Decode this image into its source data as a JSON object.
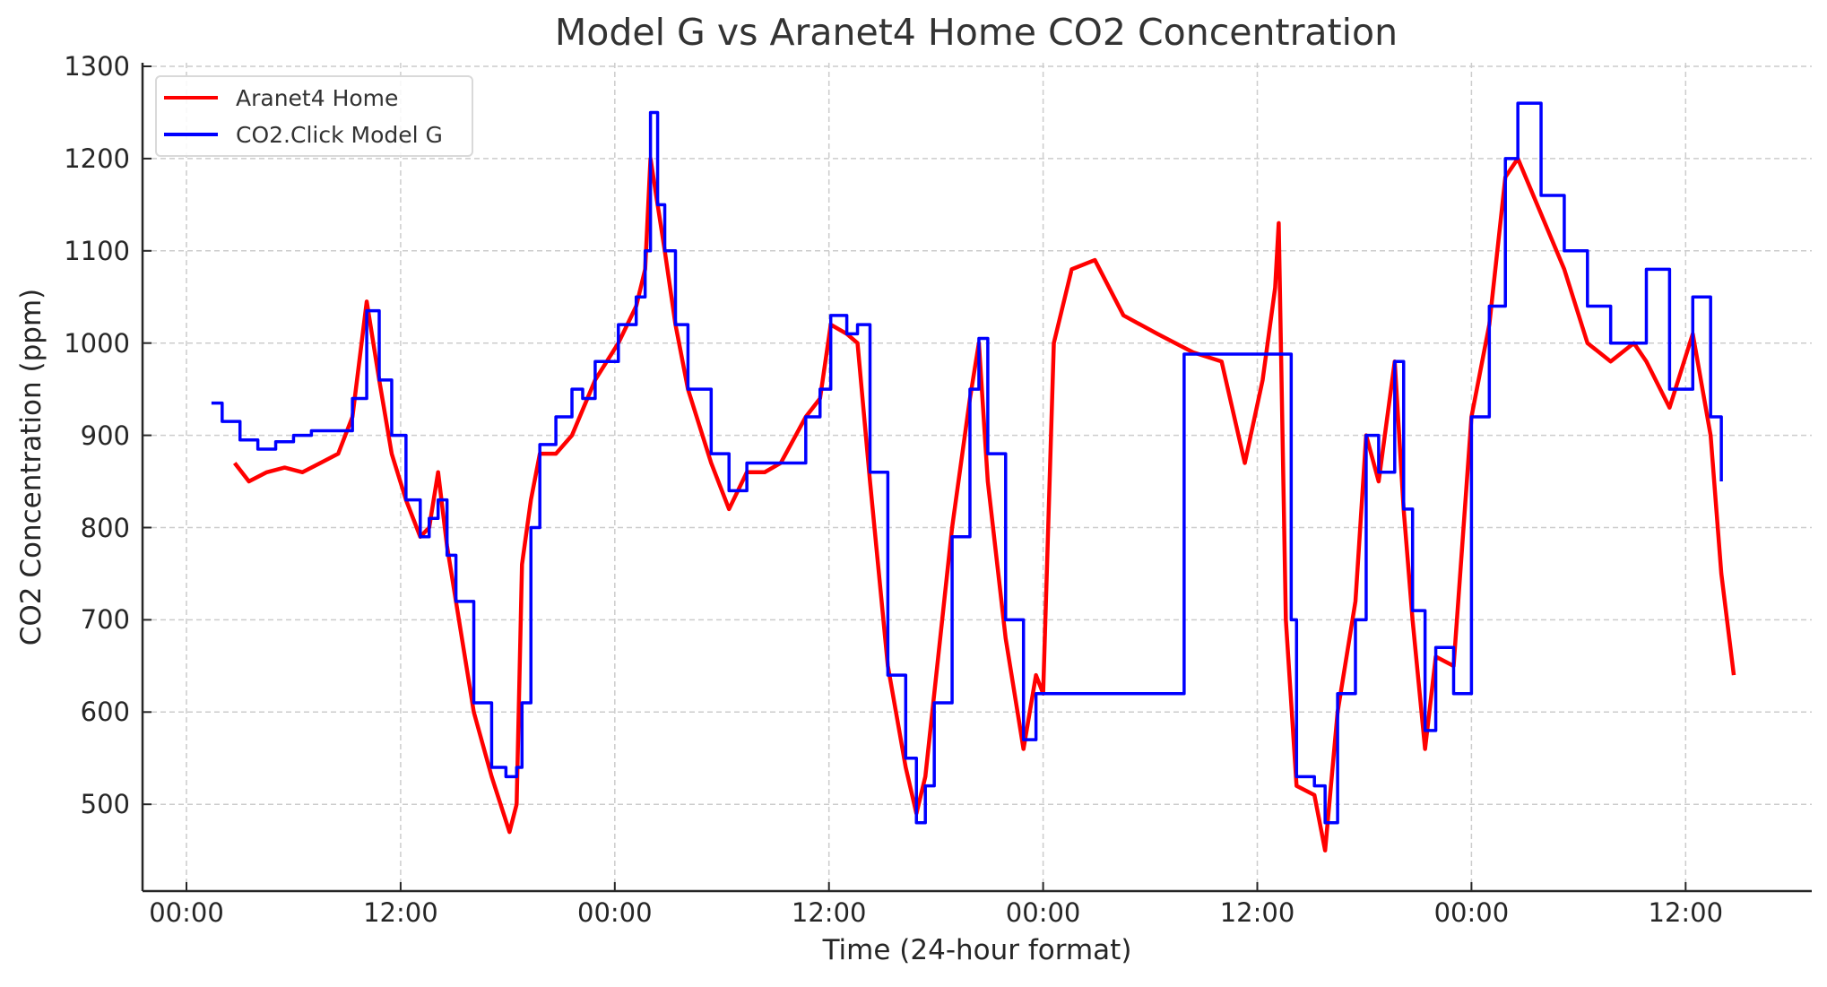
{
  "chart_data": {
    "type": "line",
    "title": "Model G vs Aranet4 Home CO2 Concentration",
    "xlabel": "Time (24-hour format)",
    "ylabel": "CO2 Concentration (ppm)",
    "x_unit": "hours since first 00:00 tick",
    "x_ticks": [
      0,
      12,
      24,
      36,
      48,
      60,
      72,
      84
    ],
    "x_tick_labels": [
      "00:00",
      "12:00",
      "00:00",
      "12:00",
      "00:00",
      "12:00",
      "00:00",
      "12:00"
    ],
    "xlim": [
      -2.5,
      91.1
    ],
    "y_ticks": [
      500,
      600,
      700,
      800,
      900,
      1000,
      1100,
      1200,
      1300
    ],
    "y_tick_labels": [
      "500",
      "600",
      "700",
      "800",
      "900",
      "1000",
      "1100",
      "1200",
      "1300"
    ],
    "ylim": [
      406,
      1300
    ],
    "grid": true,
    "legend_position": "upper left",
    "series": [
      {
        "name": "Aranet4 Home",
        "color": "#ff0000",
        "x": [
          2.7,
          3.5,
          4.5,
          5.5,
          6.5,
          7.5,
          8.5,
          9.3,
          10.1,
          10.8,
          11.5,
          12.3,
          13.1,
          13.6,
          14.1,
          14.6,
          15.1,
          16.1,
          17.1,
          18.1,
          18.5,
          18.8,
          19.3,
          19.8,
          20.7,
          21.6,
          22.9,
          24.2,
          25.2,
          25.7,
          26.0,
          26.4,
          26.8,
          27.4,
          28.1,
          29.4,
          30.4,
          31.4,
          32.4,
          33.3,
          34.7,
          35.5,
          36.1,
          37.0,
          37.6,
          38.3,
          39.3,
          40.3,
          40.9,
          41.4,
          41.9,
          42.9,
          43.9,
          44.4,
          44.9,
          45.9,
          46.9,
          47.6,
          48.0,
          48.6,
          49.6,
          50.9,
          52.5,
          54.4,
          56.4,
          58.0,
          59.3,
          60.3,
          61.0,
          61.2,
          61.6,
          62.2,
          63.2,
          63.8,
          64.5,
          65.5,
          66.1,
          66.8,
          67.7,
          68.2,
          68.7,
          69.4,
          70.0,
          71.0,
          72.0,
          73.0,
          73.9,
          74.6,
          75.9,
          77.2,
          78.5,
          79.8,
          81.1,
          81.8,
          83.1,
          84.4,
          85.4,
          86.0,
          86.7
        ],
        "values": [
          870,
          850,
          860,
          865,
          860,
          870,
          880,
          920,
          1045,
          960,
          880,
          830,
          790,
          800,
          860,
          780,
          720,
          600,
          530,
          470,
          500,
          760,
          830,
          880,
          880,
          900,
          960,
          1000,
          1040,
          1080,
          1200,
          1150,
          1100,
          1020,
          950,
          870,
          820,
          860,
          860,
          870,
          920,
          940,
          1020,
          1010,
          1000,
          850,
          650,
          540,
          490,
          530,
          620,
          800,
          940,
          1000,
          850,
          680,
          560,
          640,
          620,
          1000,
          1080,
          1090,
          1030,
          1010,
          990,
          980,
          870,
          960,
          1060,
          1130,
          700,
          520,
          510,
          450,
          600,
          720,
          900,
          850,
          980,
          820,
          700,
          560,
          660,
          650,
          920,
          1020,
          1180,
          1200,
          1140,
          1080,
          1000,
          980,
          1000,
          980,
          930,
          1010,
          900,
          750,
          640
        ]
      },
      {
        "name": "CO2.Click Model G",
        "color": "#0000ff",
        "x": [
          1.4,
          2.0,
          3.0,
          4.0,
          5.0,
          6.0,
          7.0,
          8.0,
          9.3,
          10.1,
          10.8,
          11.5,
          12.3,
          13.1,
          13.6,
          14.1,
          14.6,
          15.1,
          16.1,
          17.1,
          17.9,
          18.5,
          18.8,
          19.3,
          19.8,
          20.7,
          21.6,
          22.2,
          22.9,
          24.2,
          25.2,
          25.7,
          26.0,
          26.4,
          26.8,
          27.4,
          28.1,
          29.4,
          30.4,
          31.4,
          32.4,
          33.3,
          34.7,
          35.5,
          36.1,
          37.0,
          37.6,
          38.3,
          39.3,
          40.3,
          40.9,
          41.4,
          41.9,
          42.9,
          43.9,
          44.4,
          44.9,
          45.9,
          46.9,
          47.6,
          55.9,
          55.9,
          61.6,
          61.9,
          62.2,
          63.2,
          63.8,
          64.5,
          65.5,
          66.1,
          66.8,
          67.7,
          68.2,
          68.7,
          69.4,
          70.0,
          71.0,
          72.0,
          73.0,
          73.9,
          74.6,
          75.9,
          77.2,
          78.5,
          79.8,
          81.1,
          81.8,
          83.1,
          84.4,
          85.4,
          86.0
        ],
        "values": [
          935,
          915,
          895,
          885,
          893,
          900,
          905,
          905,
          940,
          1035,
          960,
          900,
          830,
          790,
          810,
          830,
          770,
          720,
          610,
          540,
          530,
          540,
          610,
          800,
          890,
          920,
          950,
          940,
          980,
          1020,
          1050,
          1100,
          1250,
          1150,
          1100,
          1020,
          950,
          880,
          840,
          870,
          870,
          870,
          920,
          950,
          1030,
          1010,
          1020,
          860,
          640,
          550,
          480,
          520,
          610,
          790,
          950,
          1005,
          880,
          700,
          570,
          620,
          620,
          988,
          988,
          700,
          530,
          520,
          480,
          620,
          700,
          900,
          860,
          980,
          820,
          710,
          580,
          670,
          620,
          920,
          1040,
          1200,
          1260,
          1160,
          1100,
          1040,
          1000,
          1000,
          1080,
          950,
          1050,
          920,
          850
        ]
      }
    ]
  },
  "legend": {
    "items": [
      {
        "label": "Aranet4 Home",
        "color": "#ff0000"
      },
      {
        "label": "CO2.Click Model G",
        "color": "#0000ff"
      }
    ]
  }
}
